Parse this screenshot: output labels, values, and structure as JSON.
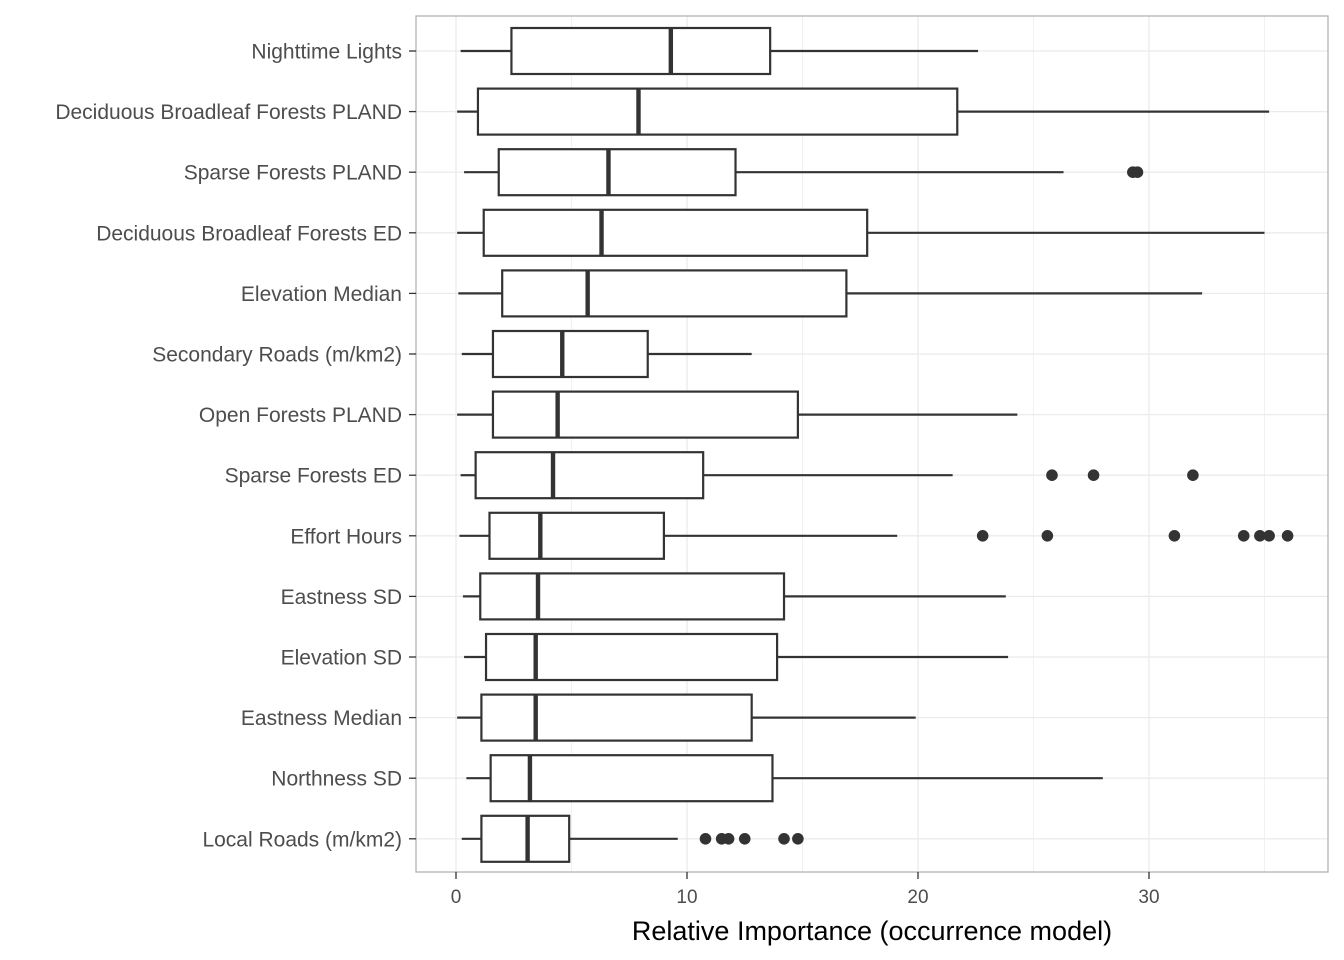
{
  "chart_data": {
    "type": "boxplot",
    "orientation": "horizontal",
    "title": "",
    "xlabel": "Relative Importance (occurrence model)",
    "ylabel": "",
    "xlim": [
      -1.8,
      37.7
    ],
    "x_ticks": [
      0,
      10,
      20,
      30
    ],
    "x_tick_labels": [
      "0",
      "10",
      "20",
      "30"
    ],
    "grid": true,
    "legend": "none",
    "colors": {
      "box_stroke": "#333333",
      "box_fill": "#ffffff",
      "grid": "#ebebeb",
      "panel_border": "#b3b3b3",
      "outlier": "#333333"
    },
    "series": [
      {
        "name": "Nighttime Lights",
        "whisker_low": 0.2,
        "q1": 2.4,
        "median": 9.3,
        "q3": 13.6,
        "whisker_high": 22.6,
        "outliers": []
      },
      {
        "name": "Deciduous Broadleaf Forests PLAND",
        "whisker_low": 0.05,
        "q1": 0.95,
        "median": 7.9,
        "q3": 21.7,
        "whisker_high": 35.2,
        "outliers": []
      },
      {
        "name": "Sparse Forests PLAND",
        "whisker_low": 0.35,
        "q1": 1.85,
        "median": 6.6,
        "q3": 12.1,
        "whisker_high": 26.3,
        "outliers": [
          29.3,
          29.5
        ]
      },
      {
        "name": "Deciduous Broadleaf Forests ED",
        "whisker_low": 0.05,
        "q1": 1.2,
        "median": 6.3,
        "q3": 17.8,
        "whisker_high": 35.0,
        "outliers": []
      },
      {
        "name": "Elevation Median",
        "whisker_low": 0.1,
        "q1": 2.0,
        "median": 5.7,
        "q3": 16.9,
        "whisker_high": 32.3,
        "outliers": []
      },
      {
        "name": "Secondary Roads (m/km2)",
        "whisker_low": 0.25,
        "q1": 1.6,
        "median": 4.6,
        "q3": 8.3,
        "whisker_high": 12.8,
        "outliers": []
      },
      {
        "name": "Open Forests PLAND",
        "whisker_low": 0.05,
        "q1": 1.6,
        "median": 4.4,
        "q3": 14.8,
        "whisker_high": 24.3,
        "outliers": []
      },
      {
        "name": "Sparse Forests ED",
        "whisker_low": 0.2,
        "q1": 0.85,
        "median": 4.2,
        "q3": 10.7,
        "whisker_high": 21.5,
        "outliers": [
          25.8,
          27.6,
          31.9
        ]
      },
      {
        "name": "Effort Hours",
        "whisker_low": 0.15,
        "q1": 1.45,
        "median": 3.65,
        "q3": 9.0,
        "whisker_high": 19.1,
        "outliers": [
          22.8,
          25.6,
          31.1,
          34.1,
          34.8,
          35.2,
          36.0
        ]
      },
      {
        "name": "Eastness SD",
        "whisker_low": 0.3,
        "q1": 1.05,
        "median": 3.55,
        "q3": 14.2,
        "whisker_high": 23.8,
        "outliers": []
      },
      {
        "name": "Elevation SD",
        "whisker_low": 0.35,
        "q1": 1.3,
        "median": 3.45,
        "q3": 13.9,
        "whisker_high": 23.9,
        "outliers": []
      },
      {
        "name": "Eastness Median",
        "whisker_low": 0.05,
        "q1": 1.1,
        "median": 3.45,
        "q3": 12.8,
        "whisker_high": 19.9,
        "outliers": []
      },
      {
        "name": "Northness SD",
        "whisker_low": 0.45,
        "q1": 1.5,
        "median": 3.2,
        "q3": 13.7,
        "whisker_high": 28.0,
        "outliers": []
      },
      {
        "name": "Local Roads (m/km2)",
        "whisker_low": 0.25,
        "q1": 1.1,
        "median": 3.1,
        "q3": 4.9,
        "whisker_high": 9.6,
        "outliers": [
          10.8,
          11.5,
          11.8,
          12.5,
          14.2,
          14.8
        ]
      }
    ]
  }
}
